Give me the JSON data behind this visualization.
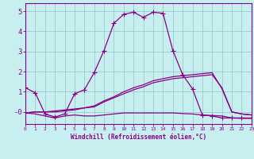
{
  "xlabel": "Windchill (Refroidissement éolien,°C)",
  "xlim": [
    0,
    23
  ],
  "ylim": [
    -0.6,
    5.4
  ],
  "yticks": [
    0,
    1,
    2,
    3,
    4,
    5
  ],
  "ytick_labels": [
    "-0",
    "1",
    "2",
    "3",
    "4",
    "5"
  ],
  "xticks": [
    0,
    1,
    2,
    3,
    4,
    5,
    6,
    7,
    8,
    9,
    10,
    11,
    12,
    13,
    14,
    15,
    16,
    17,
    18,
    19,
    20,
    21,
    22,
    23
  ],
  "background_color": "#c8eff0",
  "line_color": "#880088",
  "grid_color": "#99cccc",
  "lines": [
    {
      "x": [
        0,
        1,
        2,
        3,
        4,
        5,
        6,
        7,
        8,
        9,
        10,
        11,
        12,
        13,
        14,
        15,
        16,
        17,
        18,
        19,
        20,
        21,
        22,
        23
      ],
      "y": [
        1.2,
        0.95,
        -0.1,
        -0.25,
        -0.1,
        0.9,
        1.1,
        1.95,
        3.05,
        4.4,
        4.85,
        4.95,
        4.7,
        4.95,
        4.9,
        3.05,
        1.85,
        1.15,
        -0.15,
        -0.2,
        -0.3,
        -0.3,
        -0.3,
        -0.3
      ],
      "marker": "+"
    },
    {
      "x": [
        0,
        1,
        2,
        3,
        4,
        5,
        6,
        7,
        8,
        9,
        10,
        11,
        12,
        13,
        14,
        15,
        16,
        17,
        18,
        19,
        20,
        21,
        22,
        23
      ],
      "y": [
        -0.05,
        -0.1,
        -0.2,
        -0.3,
        -0.2,
        -0.15,
        -0.2,
        -0.2,
        -0.15,
        -0.1,
        -0.05,
        -0.05,
        -0.05,
        -0.05,
        -0.05,
        -0.05,
        -0.08,
        -0.1,
        -0.15,
        -0.18,
        -0.2,
        -0.3,
        -0.32,
        -0.32
      ],
      "marker": null
    },
    {
      "x": [
        0,
        1,
        2,
        3,
        4,
        5,
        6,
        7,
        8,
        9,
        10,
        11,
        12,
        13,
        14,
        15,
        16,
        17,
        18,
        19,
        20,
        21,
        22,
        23
      ],
      "y": [
        -0.05,
        0.0,
        0.0,
        0.0,
        0.05,
        0.1,
        0.2,
        0.25,
        0.5,
        0.7,
        0.9,
        1.1,
        1.25,
        1.45,
        1.55,
        1.65,
        1.7,
        1.75,
        1.8,
        1.85,
        1.2,
        0.0,
        -0.1,
        -0.15
      ],
      "marker": null
    },
    {
      "x": [
        0,
        1,
        2,
        3,
        4,
        5,
        6,
        7,
        8,
        9,
        10,
        11,
        12,
        13,
        14,
        15,
        16,
        17,
        18,
        19,
        20,
        21,
        22,
        23
      ],
      "y": [
        -0.05,
        0.0,
        0.0,
        0.05,
        0.1,
        0.15,
        0.2,
        0.3,
        0.55,
        0.75,
        1.0,
        1.2,
        1.35,
        1.55,
        1.65,
        1.75,
        1.8,
        1.85,
        1.9,
        1.95,
        1.15,
        0.0,
        -0.1,
        -0.15
      ],
      "marker": null
    }
  ]
}
